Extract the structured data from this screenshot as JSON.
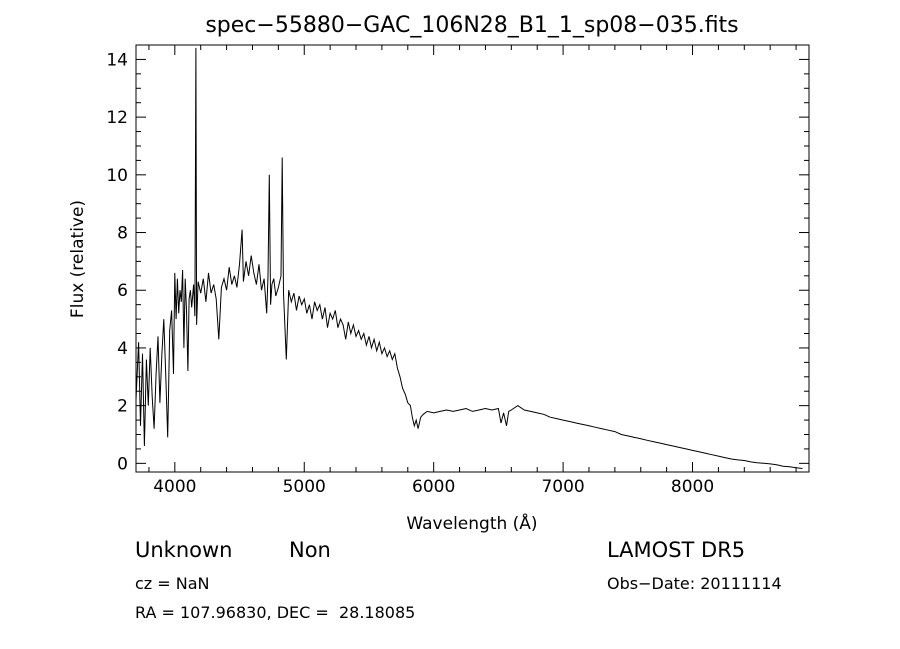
{
  "chart_data": {
    "type": "line",
    "title": "spec−55880−GAC_106N28_B1_1_sp08−035.fits",
    "xlabel": "Wavelength (Å)",
    "ylabel": "Flux (relative)",
    "xlim": [
      3700,
      8900
    ],
    "ylim": [
      -0.3,
      14.5
    ],
    "x_ticks": [
      4000,
      5000,
      6000,
      7000,
      8000
    ],
    "y_ticks": [
      0,
      2,
      4,
      6,
      8,
      10,
      12,
      14
    ],
    "grid": false,
    "series": [
      {
        "points": [
          [
            3700,
            2.2
          ],
          [
            3720,
            4.2
          ],
          [
            3735,
            1.3
          ],
          [
            3750,
            3.8
          ],
          [
            3765,
            0.6
          ],
          [
            3780,
            3.6
          ],
          [
            3795,
            2.0
          ],
          [
            3810,
            4.0
          ],
          [
            3825,
            2.3
          ],
          [
            3840,
            1.2
          ],
          [
            3855,
            3.1
          ],
          [
            3870,
            4.4
          ],
          [
            3885,
            2.1
          ],
          [
            3900,
            3.8
          ],
          [
            3915,
            5.0
          ],
          [
            3930,
            3.0
          ],
          [
            3945,
            0.9
          ],
          [
            3960,
            4.6
          ],
          [
            3975,
            5.3
          ],
          [
            3990,
            3.1
          ],
          [
            4000,
            6.6
          ],
          [
            4010,
            5.0
          ],
          [
            4020,
            6.4
          ],
          [
            4030,
            5.2
          ],
          [
            4040,
            6.0
          ],
          [
            4050,
            5.6
          ],
          [
            4060,
            6.7
          ],
          [
            4070,
            4.0
          ],
          [
            4080,
            6.4
          ],
          [
            4090,
            5.3
          ],
          [
            4101,
            3.2
          ],
          [
            4110,
            5.7
          ],
          [
            4120,
            6.0
          ],
          [
            4130,
            5.4
          ],
          [
            4145,
            6.2
          ],
          [
            4155,
            5.1
          ],
          [
            4163,
            14.4
          ],
          [
            4168,
            4.8
          ],
          [
            4180,
            6.3
          ],
          [
            4200,
            5.9
          ],
          [
            4220,
            6.4
          ],
          [
            4240,
            5.6
          ],
          [
            4260,
            6.6
          ],
          [
            4280,
            5.9
          ],
          [
            4300,
            6.2
          ],
          [
            4320,
            5.7
          ],
          [
            4340,
            4.3
          ],
          [
            4360,
            6.1
          ],
          [
            4380,
            6.4
          ],
          [
            4400,
            6.0
          ],
          [
            4420,
            6.8
          ],
          [
            4440,
            6.2
          ],
          [
            4460,
            6.5
          ],
          [
            4480,
            6.1
          ],
          [
            4500,
            6.9
          ],
          [
            4520,
            8.1
          ],
          [
            4530,
            6.3
          ],
          [
            4550,
            7.0
          ],
          [
            4570,
            6.5
          ],
          [
            4590,
            7.2
          ],
          [
            4610,
            6.6
          ],
          [
            4630,
            6.2
          ],
          [
            4650,
            6.9
          ],
          [
            4670,
            6.0
          ],
          [
            4690,
            6.4
          ],
          [
            4710,
            5.2
          ],
          [
            4720,
            6.5
          ],
          [
            4730,
            10.0
          ],
          [
            4740,
            5.5
          ],
          [
            4750,
            6.2
          ],
          [
            4765,
            6.4
          ],
          [
            4780,
            5.8
          ],
          [
            4800,
            6.1
          ],
          [
            4820,
            6.5
          ],
          [
            4830,
            10.6
          ],
          [
            4840,
            5.9
          ],
          [
            4861,
            3.6
          ],
          [
            4880,
            6.0
          ],
          [
            4900,
            5.6
          ],
          [
            4920,
            5.9
          ],
          [
            4940,
            5.3
          ],
          [
            4960,
            5.8
          ],
          [
            4980,
            5.5
          ],
          [
            5000,
            5.7
          ],
          [
            5020,
            5.2
          ],
          [
            5040,
            5.5
          ],
          [
            5060,
            5.0
          ],
          [
            5080,
            5.6
          ],
          [
            5100,
            5.3
          ],
          [
            5120,
            5.5
          ],
          [
            5140,
            5.0
          ],
          [
            5160,
            5.4
          ],
          [
            5180,
            4.7
          ],
          [
            5200,
            5.2
          ],
          [
            5220,
            5.0
          ],
          [
            5240,
            5.3
          ],
          [
            5260,
            4.7
          ],
          [
            5280,
            5.0
          ],
          [
            5300,
            4.8
          ],
          [
            5320,
            4.3
          ],
          [
            5340,
            4.9
          ],
          [
            5360,
            4.5
          ],
          [
            5380,
            4.8
          ],
          [
            5400,
            4.4
          ],
          [
            5420,
            4.6
          ],
          [
            5440,
            4.3
          ],
          [
            5460,
            4.5
          ],
          [
            5480,
            4.1
          ],
          [
            5500,
            4.4
          ],
          [
            5520,
            4.0
          ],
          [
            5540,
            4.3
          ],
          [
            5560,
            3.9
          ],
          [
            5580,
            4.2
          ],
          [
            5600,
            3.8
          ],
          [
            5620,
            4.0
          ],
          [
            5640,
            3.7
          ],
          [
            5660,
            3.9
          ],
          [
            5680,
            3.6
          ],
          [
            5700,
            3.8
          ],
          [
            5720,
            3.3
          ],
          [
            5740,
            3.0
          ],
          [
            5760,
            2.6
          ],
          [
            5780,
            2.4
          ],
          [
            5800,
            2.1
          ],
          [
            5820,
            2.0
          ],
          [
            5835,
            1.6
          ],
          [
            5850,
            1.3
          ],
          [
            5865,
            1.5
          ],
          [
            5880,
            1.2
          ],
          [
            5900,
            1.6
          ],
          [
            5920,
            1.7
          ],
          [
            5950,
            1.8
          ],
          [
            6000,
            1.75
          ],
          [
            6050,
            1.8
          ],
          [
            6100,
            1.85
          ],
          [
            6150,
            1.8
          ],
          [
            6200,
            1.85
          ],
          [
            6250,
            1.9
          ],
          [
            6300,
            1.8
          ],
          [
            6350,
            1.85
          ],
          [
            6400,
            1.9
          ],
          [
            6450,
            1.85
          ],
          [
            6500,
            1.9
          ],
          [
            6520,
            1.4
          ],
          [
            6540,
            1.75
          ],
          [
            6563,
            1.3
          ],
          [
            6580,
            1.8
          ],
          [
            6600,
            1.85
          ],
          [
            6650,
            2.0
          ],
          [
            6700,
            1.85
          ],
          [
            6750,
            1.8
          ],
          [
            6800,
            1.75
          ],
          [
            6850,
            1.7
          ],
          [
            6900,
            1.6
          ],
          [
            6950,
            1.55
          ],
          [
            7000,
            1.5
          ],
          [
            7050,
            1.45
          ],
          [
            7100,
            1.4
          ],
          [
            7150,
            1.35
          ],
          [
            7200,
            1.3
          ],
          [
            7250,
            1.25
          ],
          [
            7300,
            1.2
          ],
          [
            7350,
            1.15
          ],
          [
            7400,
            1.1
          ],
          [
            7450,
            1.0
          ],
          [
            7500,
            0.95
          ],
          [
            7550,
            0.9
          ],
          [
            7600,
            0.85
          ],
          [
            7650,
            0.8
          ],
          [
            7700,
            0.75
          ],
          [
            7750,
            0.7
          ],
          [
            7800,
            0.65
          ],
          [
            7850,
            0.6
          ],
          [
            7900,
            0.55
          ],
          [
            7950,
            0.5
          ],
          [
            8000,
            0.45
          ],
          [
            8050,
            0.4
          ],
          [
            8100,
            0.35
          ],
          [
            8150,
            0.3
          ],
          [
            8200,
            0.25
          ],
          [
            8250,
            0.2
          ],
          [
            8300,
            0.15
          ],
          [
            8350,
            0.12
          ],
          [
            8400,
            0.1
          ],
          [
            8450,
            0.05
          ],
          [
            8500,
            0.02
          ],
          [
            8550,
            0.0
          ],
          [
            8600,
            -0.02
          ],
          [
            8650,
            -0.05
          ],
          [
            8700,
            -0.1
          ],
          [
            8750,
            -0.12
          ],
          [
            8800,
            -0.15
          ],
          [
            8850,
            -0.18
          ]
        ]
      }
    ]
  },
  "info": {
    "object_class": "Unknown",
    "subclass": "Non",
    "survey": "LAMOST DR5",
    "redshift": "cz = NaN",
    "obs_date": "Obs−Date: 20111114",
    "coords": "RA = 107.96830, DEC =  28.18085"
  }
}
